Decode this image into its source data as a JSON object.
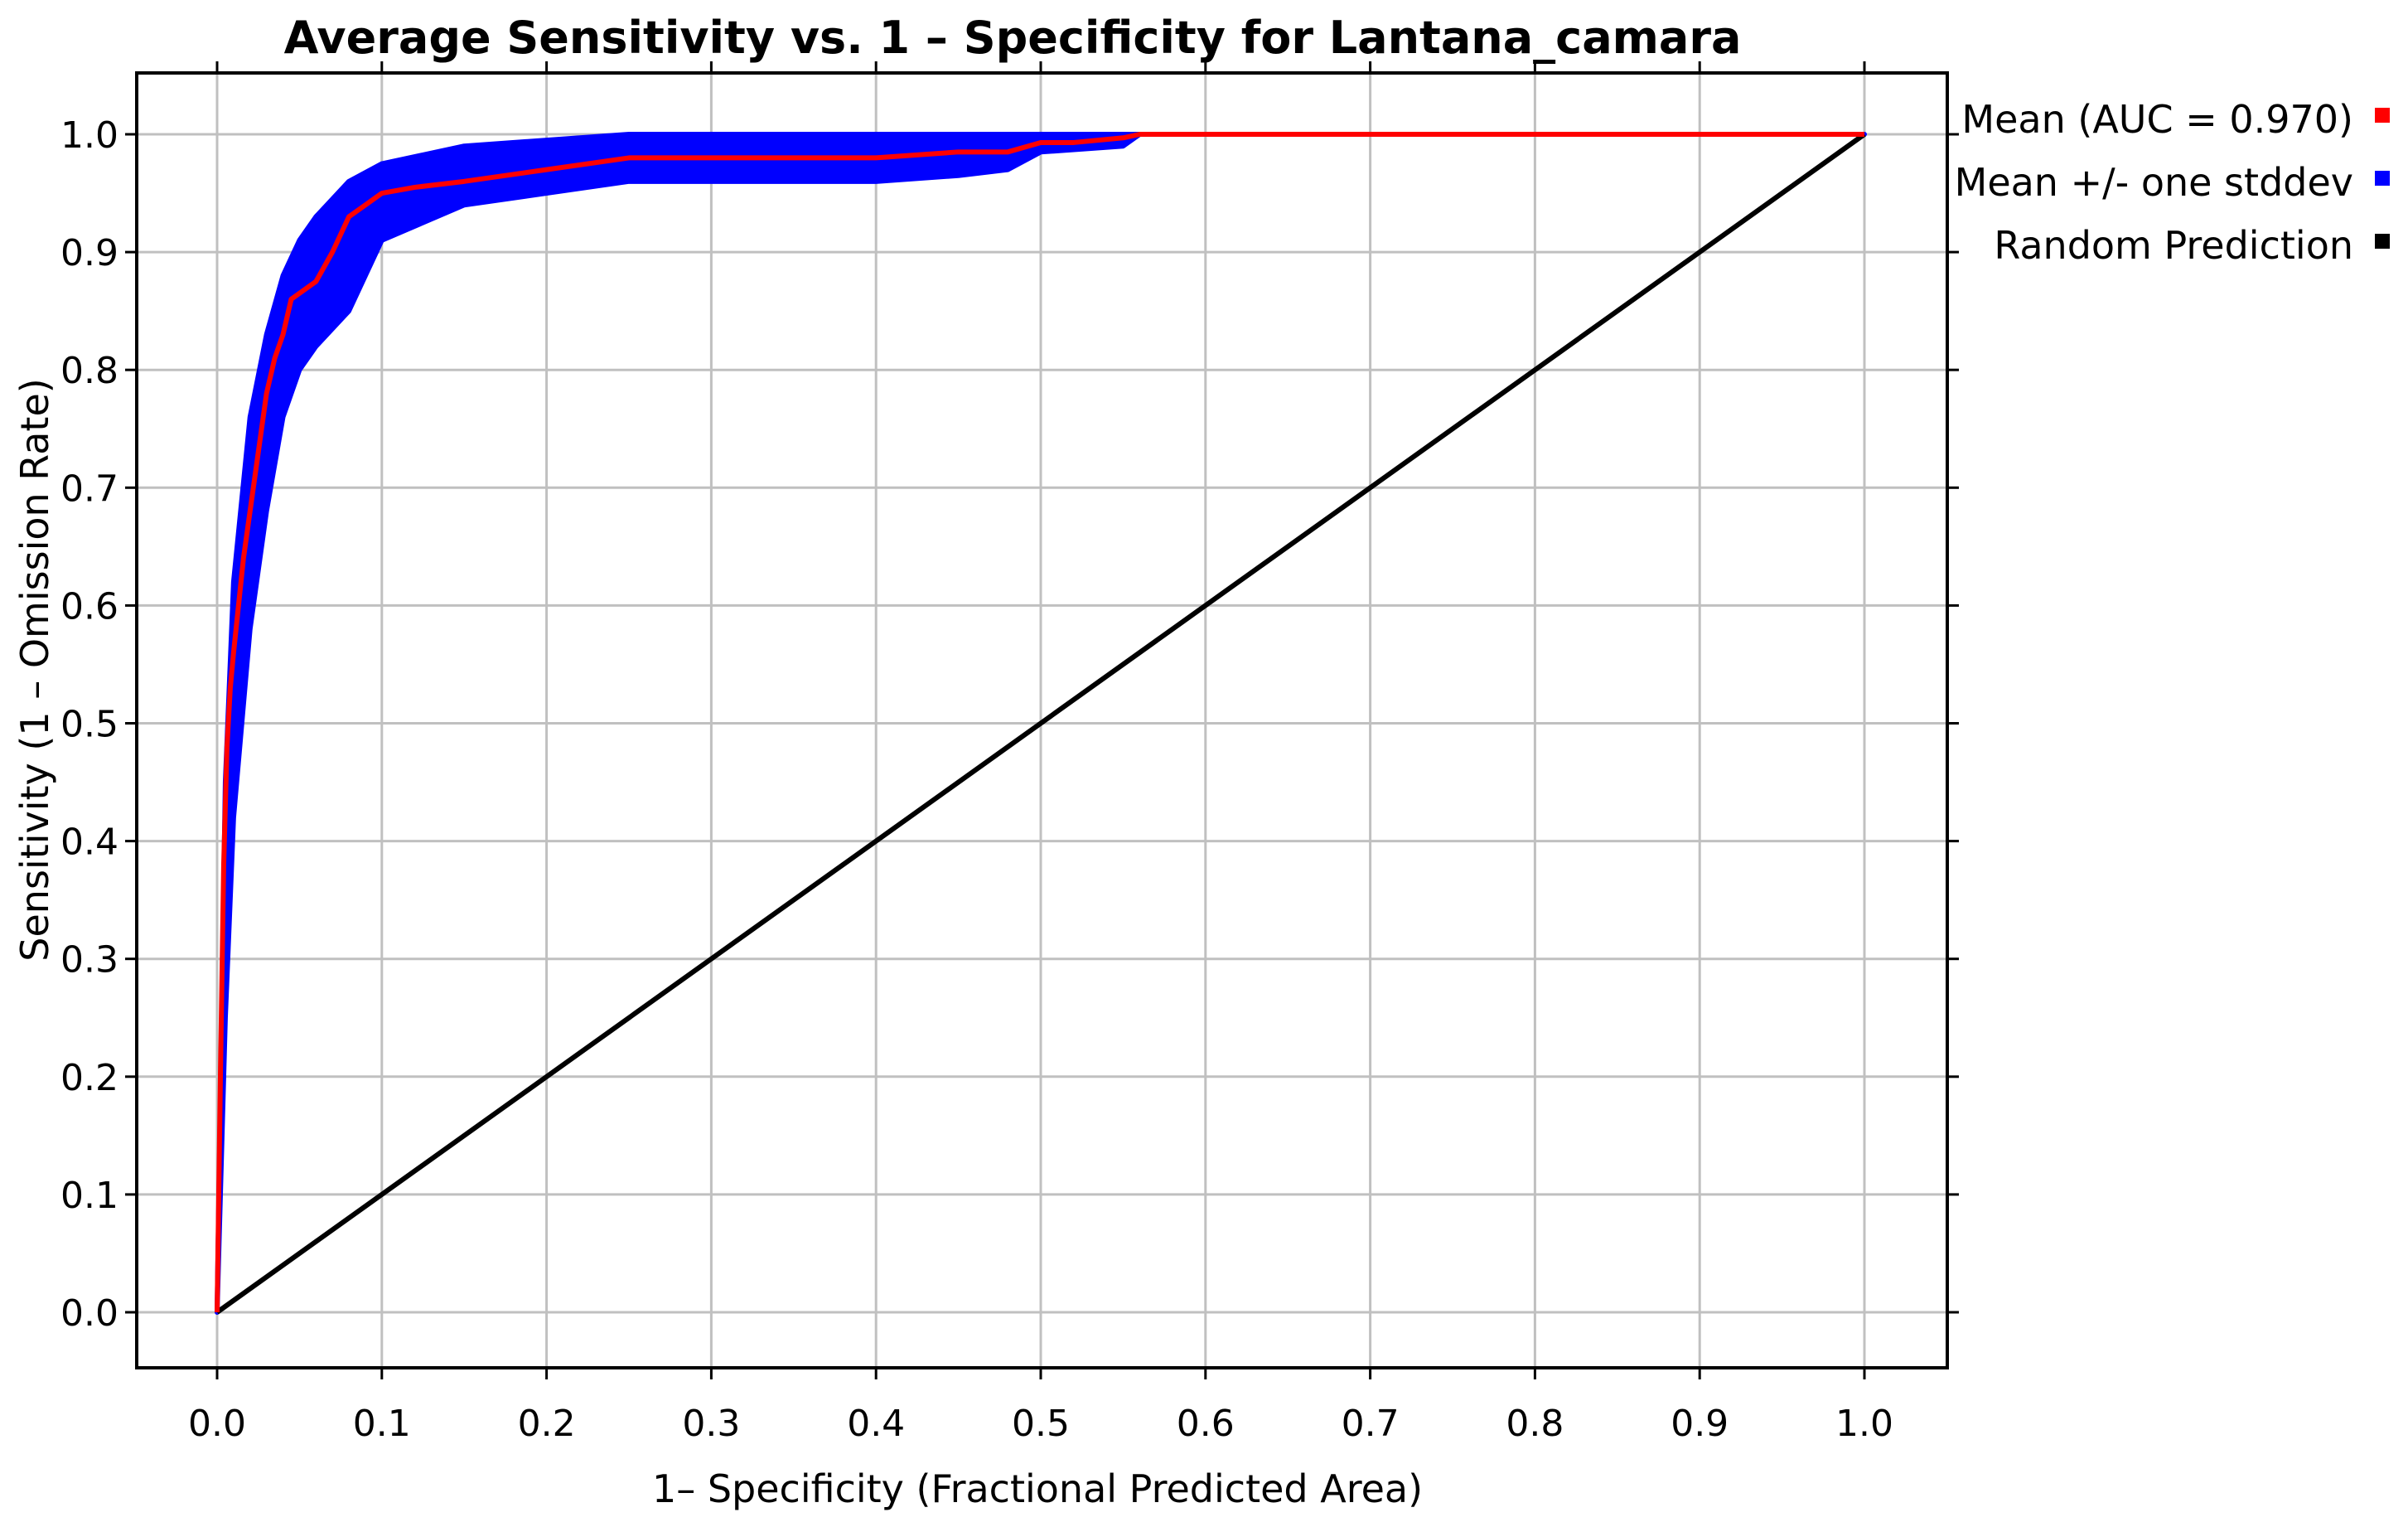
{
  "chart_data": {
    "type": "line",
    "title": "Average Sensitivity vs. 1 – Specificity for Lantana_camara",
    "xlabel": "1– Specificity (Fractional Predicted Area)",
    "ylabel": "Sensitivity (1 – Omission Rate)",
    "xlim": [
      0,
      1
    ],
    "ylim": [
      0,
      1
    ],
    "xticks": [
      "0.0",
      "0.1",
      "0.2",
      "0.3",
      "0.4",
      "0.5",
      "0.6",
      "0.7",
      "0.8",
      "0.9",
      "1.0"
    ],
    "yticks": [
      "0.0",
      "0.1",
      "0.2",
      "0.3",
      "0.4",
      "0.5",
      "0.6",
      "0.7",
      "0.8",
      "0.9",
      "1.0"
    ],
    "grid": true,
    "legend_position": "right-top, outside plot",
    "colors": {
      "mean": "#ff0000",
      "band": "#0000ff",
      "random": "#000000"
    },
    "series": [
      {
        "name": "Mean (AUC = 0.970)",
        "kind": "line",
        "x": [
          0.0,
          0.002,
          0.004,
          0.006,
          0.008,
          0.01,
          0.013,
          0.016,
          0.02,
          0.025,
          0.03,
          0.035,
          0.04,
          0.045,
          0.05,
          0.06,
          0.07,
          0.08,
          0.09,
          0.1,
          0.12,
          0.15,
          0.2,
          0.25,
          0.3,
          0.35,
          0.4,
          0.45,
          0.48,
          0.5,
          0.52,
          0.55,
          0.56,
          0.6,
          0.7,
          0.8,
          0.9,
          1.0
        ],
        "y": [
          0.0,
          0.2,
          0.38,
          0.48,
          0.53,
          0.56,
          0.6,
          0.64,
          0.68,
          0.73,
          0.78,
          0.81,
          0.83,
          0.86,
          0.865,
          0.875,
          0.9,
          0.93,
          0.94,
          0.95,
          0.955,
          0.96,
          0.97,
          0.98,
          0.98,
          0.98,
          0.98,
          0.985,
          0.985,
          0.993,
          0.993,
          0.997,
          1.0,
          1.0,
          1.0,
          1.0,
          1.0,
          1.0
        ]
      },
      {
        "name": "Mean +/- one stddev",
        "kind": "band",
        "x": [
          0.0,
          0.005,
          0.01,
          0.02,
          0.03,
          0.04,
          0.05,
          0.06,
          0.08,
          0.1,
          0.15,
          0.2,
          0.25,
          0.3,
          0.4,
          0.45,
          0.48,
          0.5,
          0.55,
          0.56,
          0.6,
          0.8,
          1.0
        ],
        "lower": [
          0.0,
          0.25,
          0.42,
          0.58,
          0.68,
          0.76,
          0.8,
          0.82,
          0.85,
          0.91,
          0.94,
          0.95,
          0.96,
          0.96,
          0.96,
          0.965,
          0.97,
          0.985,
          0.99,
          1.0,
          1.0,
          1.0,
          1.0
        ],
        "upper": [
          0.0,
          0.45,
          0.62,
          0.76,
          0.83,
          0.88,
          0.91,
          0.93,
          0.96,
          0.975,
          0.99,
          0.995,
          1.0,
          1.0,
          1.0,
          1.0,
          1.0,
          1.0,
          1.0,
          1.0,
          1.0,
          1.0,
          1.0
        ]
      },
      {
        "name": "Random Prediction",
        "kind": "line",
        "x": [
          0.0,
          1.0
        ],
        "y": [
          0.0,
          1.0
        ]
      }
    ]
  }
}
